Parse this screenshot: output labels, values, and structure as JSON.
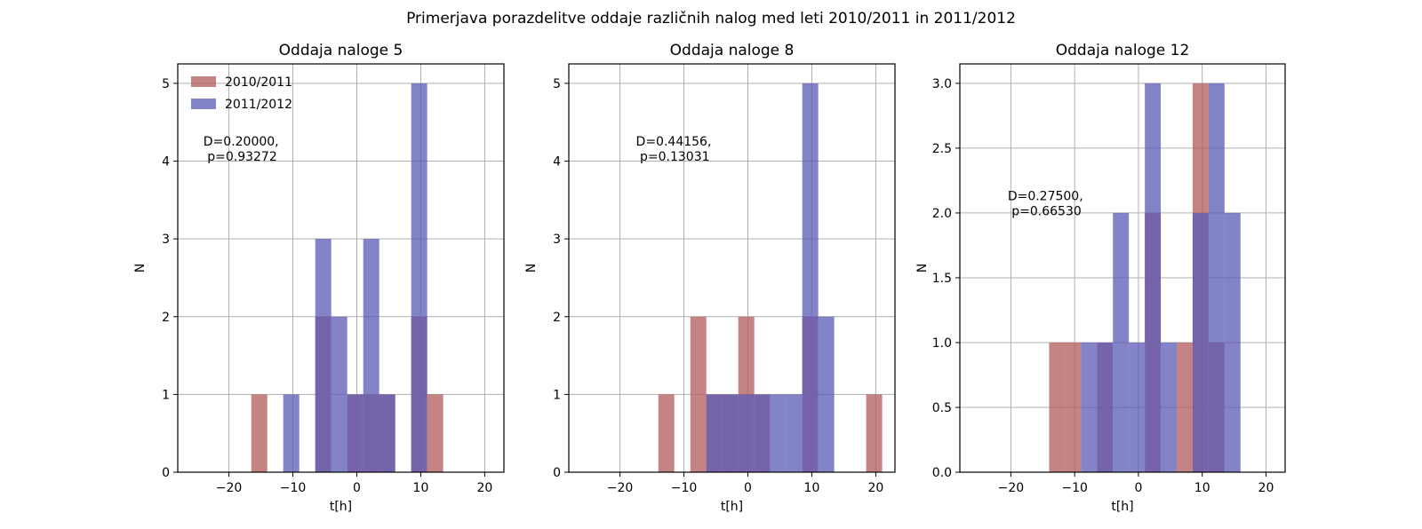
{
  "figure": {
    "suptitle": "Primerjava porazdelitve oddaje različnih nalog  med leti 2010/2011 in 2011/2012"
  },
  "colors": {
    "series_2010": "#b15b5b",
    "series_2011": "#5a5ab5",
    "grid": "#b0b0b0",
    "axes": "#000000"
  },
  "chart_data": [
    {
      "type": "bar",
      "title": "Oddaja naloge 5",
      "xlabel": "t[h]",
      "ylabel": "N",
      "xlim": [
        -28,
        23
      ],
      "ylim": [
        0,
        5.25
      ],
      "xticks": [
        -20,
        -10,
        0,
        10,
        20
      ],
      "xtick_labels": [
        "−20",
        "−10",
        "0",
        "10",
        "20"
      ],
      "yticks": [
        0,
        1,
        2,
        3,
        4,
        5
      ],
      "ytick_labels": [
        "0",
        "1",
        "2",
        "3",
        "4",
        "5"
      ],
      "grid": true,
      "legend": "top-left",
      "annotation": [
        "D=0.20000,",
        " p=0.93272"
      ],
      "annotation_pos": [
        -24,
        4.2
      ],
      "bin_width": 2.5,
      "series": [
        {
          "name": "2010/2011",
          "bins": [
            [
              -16.5,
              1
            ],
            [
              -9,
              0
            ],
            [
              -6.5,
              2
            ],
            [
              -4,
              0
            ],
            [
              -1.5,
              1
            ],
            [
              1,
              1
            ],
            [
              3.5,
              1
            ],
            [
              8.5,
              2
            ],
            [
              11,
              1
            ]
          ]
        },
        {
          "name": "2011/2012",
          "bins": [
            [
              -11.5,
              1
            ],
            [
              -6.5,
              3
            ],
            [
              -4,
              2
            ],
            [
              -1.5,
              1
            ],
            [
              1,
              3
            ],
            [
              3.5,
              1
            ],
            [
              8.5,
              5
            ]
          ]
        }
      ]
    },
    {
      "type": "bar",
      "title": "Oddaja naloge 8",
      "xlabel": "t[h]",
      "ylabel": "N",
      "xlim": [
        -28,
        23
      ],
      "ylim": [
        0,
        5.25
      ],
      "xticks": [
        -20,
        -10,
        0,
        10,
        20
      ],
      "xtick_labels": [
        "−20",
        "−10",
        "0",
        "10",
        "20"
      ],
      "yticks": [
        0,
        1,
        2,
        3,
        4,
        5
      ],
      "ytick_labels": [
        "0",
        "1",
        "2",
        "3",
        "4",
        "5"
      ],
      "grid": true,
      "legend": "none",
      "annotation": [
        "D=0.44156,",
        " p=0.13031"
      ],
      "annotation_pos": [
        -17.5,
        4.2
      ],
      "bin_width": 2.5,
      "series": [
        {
          "name": "2010/2011",
          "bins": [
            [
              -14,
              1
            ],
            [
              -9,
              2
            ],
            [
              -6.5,
              1
            ],
            [
              -4,
              1
            ],
            [
              -1.5,
              2
            ],
            [
              1,
              1
            ],
            [
              8.5,
              2
            ],
            [
              18.5,
              1
            ]
          ]
        },
        {
          "name": "2011/2012",
          "bins": [
            [
              -6.5,
              1
            ],
            [
              -4,
              1
            ],
            [
              -1.5,
              1
            ],
            [
              1,
              1
            ],
            [
              3.5,
              1
            ],
            [
              6,
              1
            ],
            [
              8.5,
              5
            ],
            [
              11,
              2
            ]
          ]
        }
      ]
    },
    {
      "type": "bar",
      "title": "Oddaja naloge 12",
      "xlabel": "t[h]",
      "ylabel": "N",
      "xlim": [
        -28,
        23
      ],
      "ylim": [
        0,
        3.15
      ],
      "xticks": [
        -20,
        -10,
        0,
        10,
        20
      ],
      "xtick_labels": [
        "−20",
        "−10",
        "0",
        "10",
        "20"
      ],
      "yticks": [
        0,
        0.5,
        1,
        1.5,
        2,
        2.5,
        3
      ],
      "ytick_labels": [
        "0.0",
        "0.5",
        "1.0",
        "1.5",
        "2.0",
        "2.5",
        "3.0"
      ],
      "grid": true,
      "legend": "none",
      "annotation": [
        "D=0.27500,",
        " p=0.66530"
      ],
      "annotation_pos": [
        -20.5,
        2.1
      ],
      "bin_width": 2.5,
      "series": [
        {
          "name": "2010/2011",
          "bins": [
            [
              -14,
              1
            ],
            [
              -11.5,
              1
            ],
            [
              -6.5,
              1
            ],
            [
              1,
              2
            ],
            [
              6,
              1
            ],
            [
              8.5,
              3
            ],
            [
              11,
              1
            ]
          ]
        },
        {
          "name": "2011/2012",
          "bins": [
            [
              -9,
              1
            ],
            [
              -6.5,
              1
            ],
            [
              -4,
              2
            ],
            [
              -1.5,
              1
            ],
            [
              1,
              3
            ],
            [
              3.5,
              1
            ],
            [
              8.5,
              2
            ],
            [
              11,
              3
            ],
            [
              13.5,
              2
            ]
          ]
        }
      ]
    }
  ]
}
